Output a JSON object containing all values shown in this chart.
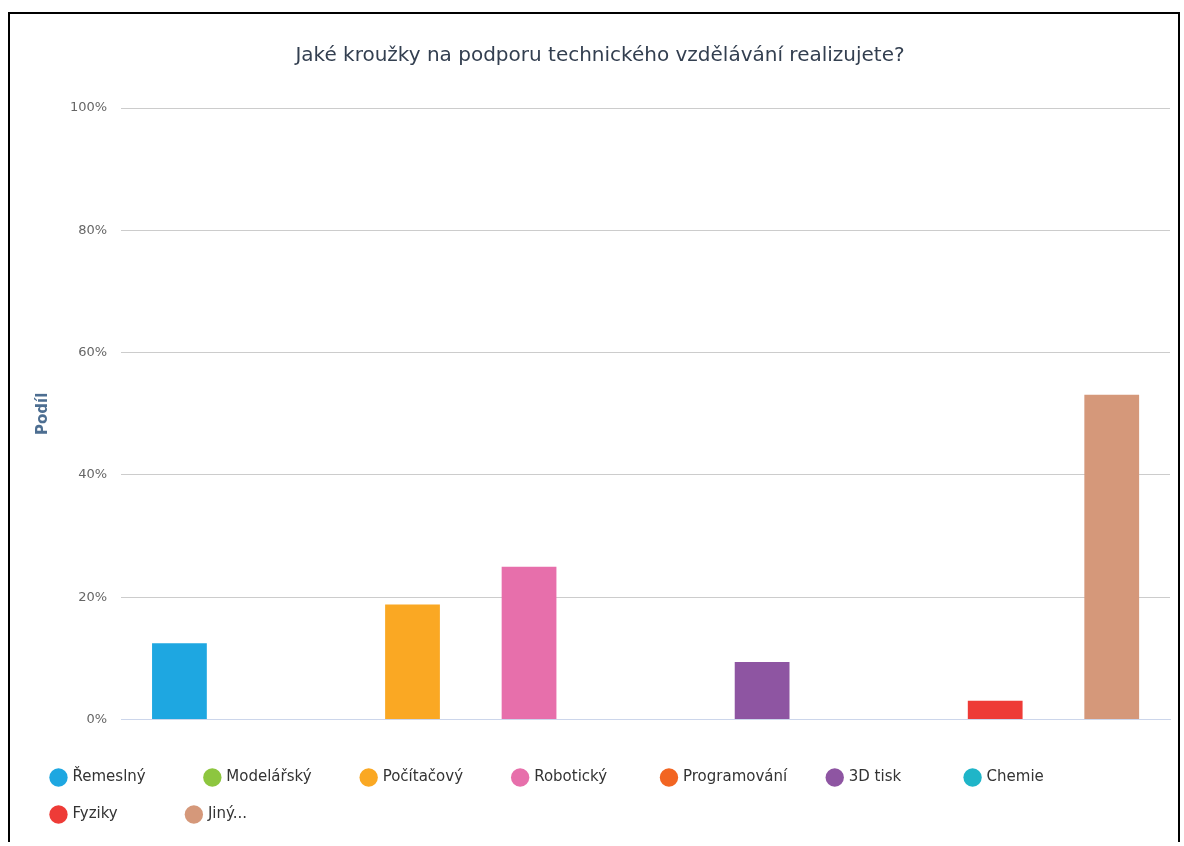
{
  "chart_data": {
    "type": "bar",
    "title": "Jaké kroužky na podporu technického vzdělávání realizujete?",
    "ylabel": "Podíl",
    "categories": [
      null,
      null,
      null,
      null,
      null,
      null,
      null,
      null,
      null
    ],
    "series": [
      {
        "name": "Řemeslný",
        "color": "#1ea7e1",
        "values": [
          12.5,
          null,
          null,
          null,
          null,
          null,
          null,
          null,
          null
        ]
      },
      {
        "name": "Modelářský",
        "color": "#8dc63f",
        "values": [
          null,
          0,
          null,
          null,
          null,
          null,
          null,
          null,
          null
        ]
      },
      {
        "name": "Počítačový",
        "color": "#faa823",
        "values": [
          null,
          null,
          18.8,
          null,
          null,
          null,
          null,
          null,
          null
        ]
      },
      {
        "name": "Robotický",
        "color": "#e76fab",
        "values": [
          null,
          null,
          null,
          25,
          null,
          null,
          null,
          null,
          null
        ]
      },
      {
        "name": "Programování",
        "color": "#f26522",
        "values": [
          null,
          null,
          null,
          null,
          0,
          null,
          null,
          null,
          null
        ]
      },
      {
        "name": "3D tisk",
        "color": "#8e55a2",
        "values": [
          null,
          null,
          null,
          null,
          null,
          9.4,
          null,
          null,
          null
        ]
      },
      {
        "name": "Chemie",
        "color": "#1fb5c8",
        "values": [
          null,
          null,
          null,
          null,
          null,
          null,
          0,
          null,
          null
        ]
      },
      {
        "name": "Fyziky",
        "color": "#ee3b37",
        "values": [
          null,
          null,
          null,
          null,
          null,
          null,
          null,
          3.1,
          null
        ]
      },
      {
        "name": "Jiný...",
        "color": "#d5987a",
        "values": [
          null,
          null,
          null,
          null,
          null,
          null,
          null,
          null,
          53.1
        ]
      }
    ],
    "ylim": [
      0,
      100
    ],
    "yticks": [
      {
        "value": 0,
        "label": "0%"
      },
      {
        "value": 20,
        "label": "20%"
      },
      {
        "value": 40,
        "label": "40%"
      },
      {
        "value": 60,
        "label": "60%"
      },
      {
        "value": 80,
        "label": "80%"
      },
      {
        "value": 100,
        "label": "100%"
      }
    ],
    "grid": "y",
    "legend": "bottom",
    "marker": "circle"
  }
}
